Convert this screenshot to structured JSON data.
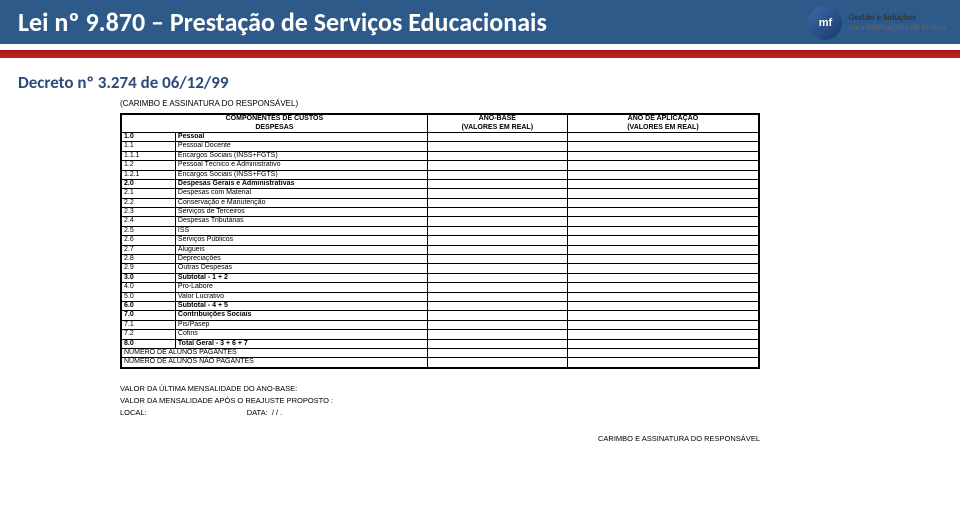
{
  "header": {
    "title": "Lei nº 9.870 – Prestação de Serviços Educacionais"
  },
  "brand": {
    "line1": "Gestão e Soluções",
    "line2": "para Instituições de Ensino",
    "logo": "mf"
  },
  "subtitle": "Decreto nº 3.274 de 06/12/99",
  "carimbo": "(CARIMBO E ASSINATURA DO RESPONSÁVEL)",
  "cols": {
    "c1a": "COMPONENTES DE CUSTOS",
    "c1b": "DESPESAS",
    "c2a": "ANO-BASE",
    "c2b": "(VALORES EM REAL)",
    "c3a": "ANO DE APLICAÇÃO",
    "c3b": "(VALORES EM REAL)"
  },
  "rows": [
    {
      "c": "1.0",
      "d": "Pessoal",
      "b": 1
    },
    {
      "c": "1.1",
      "d": "Pessoal Docente"
    },
    {
      "c": "1.1.1",
      "d": "Encargos Sociais (INSS+FGTS)"
    },
    {
      "c": "1.2",
      "d": "Pessoal Técnico e Administrativo"
    },
    {
      "c": "1.2.1",
      "d": "Encargos Sociais (INSS+FGTS)"
    },
    {
      "c": "2.0",
      "d": "Despesas Gerais e Administrativas",
      "b": 1
    },
    {
      "c": "2.1",
      "d": "Despesas com Material"
    },
    {
      "c": "2.2",
      "d": "Conservação e Manutenção"
    },
    {
      "c": "2.3",
      "d": "Serviços de Terceiros"
    },
    {
      "c": "2.4",
      "d": "Despesas Tributárias"
    },
    {
      "c": "2.5",
      "d": "ISS"
    },
    {
      "c": "2.6",
      "d": "Serviços Públicos"
    },
    {
      "c": "2.7",
      "d": "Alugueis"
    },
    {
      "c": "2.8",
      "d": "Depreciações"
    },
    {
      "c": "2.9",
      "d": "Outras Despesas"
    },
    {
      "c": "3.0",
      "d": "Subtotal - 1 + 2",
      "b": 1
    },
    {
      "c": "4.0",
      "d": "Pro-Labore"
    },
    {
      "c": "5.0",
      "d": "Valor Lucrativo"
    },
    {
      "c": "6.0",
      "d": "Subtotal - 4 + 5",
      "b": 1
    },
    {
      "c": "7.0",
      "d": "Contribuições Sociais",
      "b": 1
    },
    {
      "c": "7.1",
      "d": "Pis/Pasep"
    },
    {
      "c": "7.2",
      "d": "Cofins"
    },
    {
      "c": "8.0",
      "d": "Total Geral - 3 + 6 + 7",
      "b": 1
    }
  ],
  "bottom": [
    "NÚMERO DE ALUNOS PAGANTES",
    "NÚMERO DE ALUNOS NÃO PAGANTES"
  ],
  "foot": {
    "f1": "VALOR DA ÚLTIMA MENSALIDADE DO ANO-BASE:",
    "f2": "VALOR DA MENSALIDADE APÓS O REAJUSTE PROPOSTO :",
    "local": "LOCAL:",
    "data": "DATA:",
    "date": "/     /    .",
    "sig": "CARIMBO E ASSINATURA DO RESPONSÁVEL"
  },
  "style": {
    "headerBg": "#2e5a8a",
    "redBar": "#c92020",
    "subColor": "#2e4a7a",
    "border": "#000",
    "bodyBg": "#fff"
  }
}
